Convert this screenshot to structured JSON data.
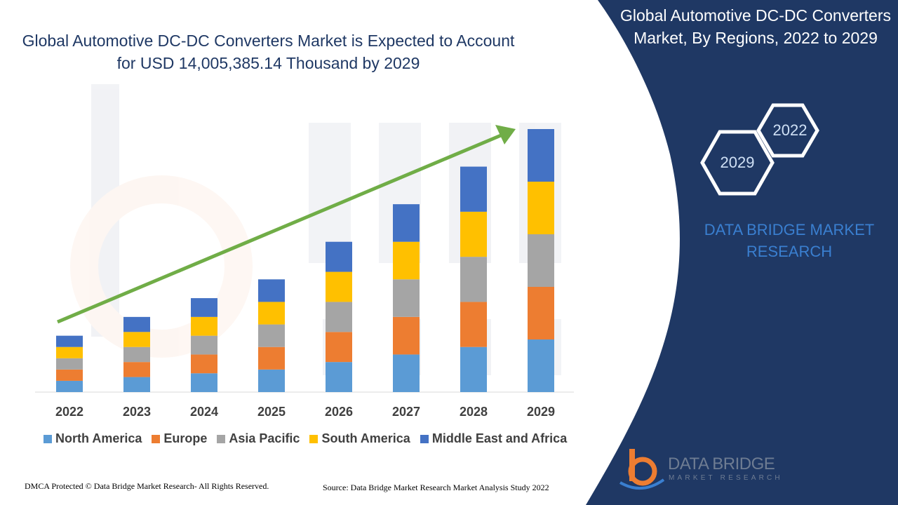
{
  "title": "Global Automotive DC-DC Converters Market is Expected to Account for USD 14,005,385.14 Thousand by 2029",
  "side_panel": {
    "title": "Global Automotive DC-DC Converters Market, By Regions, 2022 to 2029",
    "hex_start": "2022",
    "hex_end": "2029",
    "brand": "DATA BRIDGE MARKET RESEARCH",
    "logo_name": "DATA BRIDGE",
    "logo_tagline": "MARKET RESEARCH"
  },
  "footer": {
    "copyright": "DMCA Protected © Data Bridge Market Research- All Rights Reserved.",
    "source": "Source: Data Bridge Market Research Market Analysis Study 2022"
  },
  "colors": {
    "panel_bg": "#1f3864",
    "title_text": "#1f3864",
    "trend_arrow": "#70ad47"
  },
  "chart_data": {
    "type": "bar",
    "stacked": true,
    "categories": [
      "2022",
      "2023",
      "2024",
      "2025",
      "2026",
      "2027",
      "2028",
      "2029"
    ],
    "series": [
      {
        "name": "North America",
        "color": "#5b9bd5",
        "values": [
          15,
          20,
          25,
          30,
          40,
          50,
          60,
          70
        ]
      },
      {
        "name": "Europe",
        "color": "#ed7d31",
        "values": [
          15,
          20,
          25,
          30,
          40,
          50,
          60,
          70
        ]
      },
      {
        "name": "Asia Pacific",
        "color": "#a5a5a5",
        "values": [
          15,
          20,
          25,
          30,
          40,
          50,
          60,
          70
        ]
      },
      {
        "name": "South America",
        "color": "#ffc000",
        "values": [
          15,
          20,
          25,
          30,
          40,
          50,
          60,
          70
        ]
      },
      {
        "name": "Middle East and Africa",
        "color": "#4472c4",
        "values": [
          15,
          20,
          25,
          30,
          40,
          50,
          60,
          70
        ]
      }
    ],
    "ylim": [
      0,
      350
    ],
    "legend": "bottom",
    "grid": false,
    "trend_arrow": true
  }
}
